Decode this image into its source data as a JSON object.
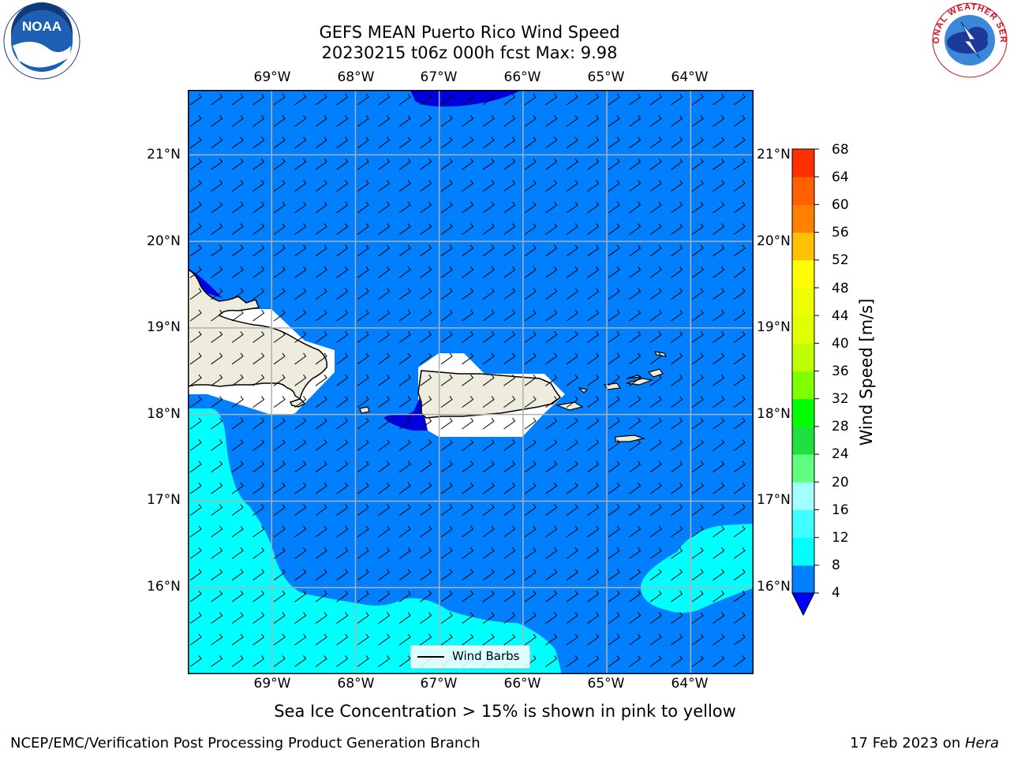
{
  "title": {
    "line1": "GEFS MEAN Puerto Rico Wind Speed",
    "line2": "20230215 t06z 000h fcst   Max: 9.98"
  },
  "map": {
    "lon_labels": [
      "69°W",
      "68°W",
      "67°W",
      "66°W",
      "65°W",
      "64°W"
    ],
    "lon_values": [
      -69,
      -68,
      -67,
      -66,
      -65,
      -64
    ],
    "lat_labels": [
      "21°N",
      "20°N",
      "19°N",
      "18°N",
      "17°N",
      "16°N"
    ],
    "lat_values": [
      21,
      20,
      19,
      18,
      17,
      16
    ],
    "lon_range": [
      -70.0,
      -63.25
    ],
    "lat_range": [
      15.0,
      21.75
    ],
    "colors": {
      "ocean_dark": "#0000dd",
      "ocean_mid": "#0080ff",
      "ocean_light": "#00ffff",
      "land": "#eeecdc",
      "grid": "#b0b0b0"
    }
  },
  "legend": {
    "label": "Wind Barbs"
  },
  "colorbar": {
    "title": "Wind Speed [m/s]",
    "ticks": [
      "68",
      "64",
      "60",
      "56",
      "52",
      "48",
      "44",
      "40",
      "36",
      "32",
      "28",
      "24",
      "20",
      "16",
      "12",
      "8",
      "4"
    ],
    "levels": [
      4,
      8,
      12,
      16,
      20,
      24,
      28,
      32,
      36,
      40,
      44,
      48,
      52,
      56,
      60,
      64,
      68
    ],
    "colors": [
      "#0080ff",
      "#00ffff",
      "#40ffff",
      "#a0ffff",
      "#60ff80",
      "#20e040",
      "#00ff00",
      "#80ff00",
      "#c0ff00",
      "#e0ff00",
      "#f0ff00",
      "#ffff00",
      "#ffc000",
      "#ff8000",
      "#ff6000",
      "#ff3000",
      "#ff0000"
    ],
    "under_color": "#0000ff"
  },
  "note": "Sea Ice Concentration > 15% is shown in pink to yellow",
  "footer": {
    "left": "NCEP/EMC/Verification Post Processing Product Generation Branch",
    "right_prefix": "17 Feb 2023 on ",
    "right_host": "Hera"
  },
  "logos": {
    "left": "NOAA",
    "right": "NATIONAL WEATHER SERVICE"
  }
}
